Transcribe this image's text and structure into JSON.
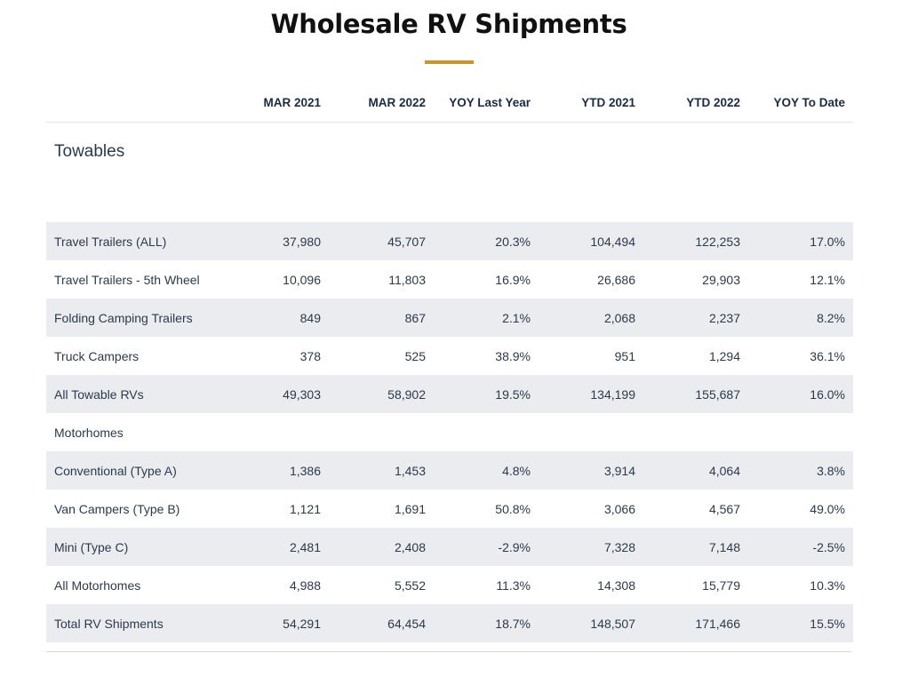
{
  "title": "Wholesale RV Shipments",
  "accent_color": "#c9962e",
  "table": {
    "columns": [
      "",
      "MAR 2021",
      "MAR 2022",
      "YOY Last Year",
      "YTD 2021",
      "YTD 2022",
      "YOY To Date"
    ],
    "section_label": "Towables",
    "rows": [
      {
        "label": "Travel Trailers (ALL)",
        "values": [
          "37,980",
          "45,707",
          "20.3%",
          "104,494",
          "122,253",
          "17.0%"
        ]
      },
      {
        "label": "Travel Trailers - 5th Wheel",
        "values": [
          "10,096",
          "11,803",
          "16.9%",
          "26,686",
          "29,903",
          "12.1%"
        ]
      },
      {
        "label": "Folding Camping Trailers",
        "values": [
          "849",
          "867",
          "2.1%",
          "2,068",
          "2,237",
          "8.2%"
        ]
      },
      {
        "label": "Truck Campers",
        "values": [
          "378",
          "525",
          "38.9%",
          "951",
          "1,294",
          "36.1%"
        ]
      },
      {
        "label": "All Towable RVs",
        "values": [
          "49,303",
          "58,902",
          "19.5%",
          "134,199",
          "155,687",
          "16.0%"
        ]
      },
      {
        "label": "Motorhomes",
        "values": [
          "",
          "",
          "",
          "",
          "",
          ""
        ]
      },
      {
        "label": "Conventional (Type A)",
        "values": [
          "1,386",
          "1,453",
          "4.8%",
          "3,914",
          "4,064",
          "3.8%"
        ]
      },
      {
        "label": "Van Campers (Type B)",
        "values": [
          "1,121",
          "1,691",
          "50.8%",
          "3,066",
          "4,567",
          "49.0%"
        ]
      },
      {
        "label": "Mini (Type C)",
        "values": [
          "2,481",
          "2,408",
          "-2.9%",
          "7,328",
          "7,148",
          "-2.5%"
        ]
      },
      {
        "label": "All Motorhomes",
        "values": [
          "4,988",
          "5,552",
          "11.3%",
          "14,308",
          "15,779",
          "10.3%"
        ]
      },
      {
        "label": "Total RV Shipments",
        "values": [
          "54,291",
          "64,454",
          "18.7%",
          "148,507",
          "171,466",
          "15.5%"
        ]
      }
    ]
  }
}
